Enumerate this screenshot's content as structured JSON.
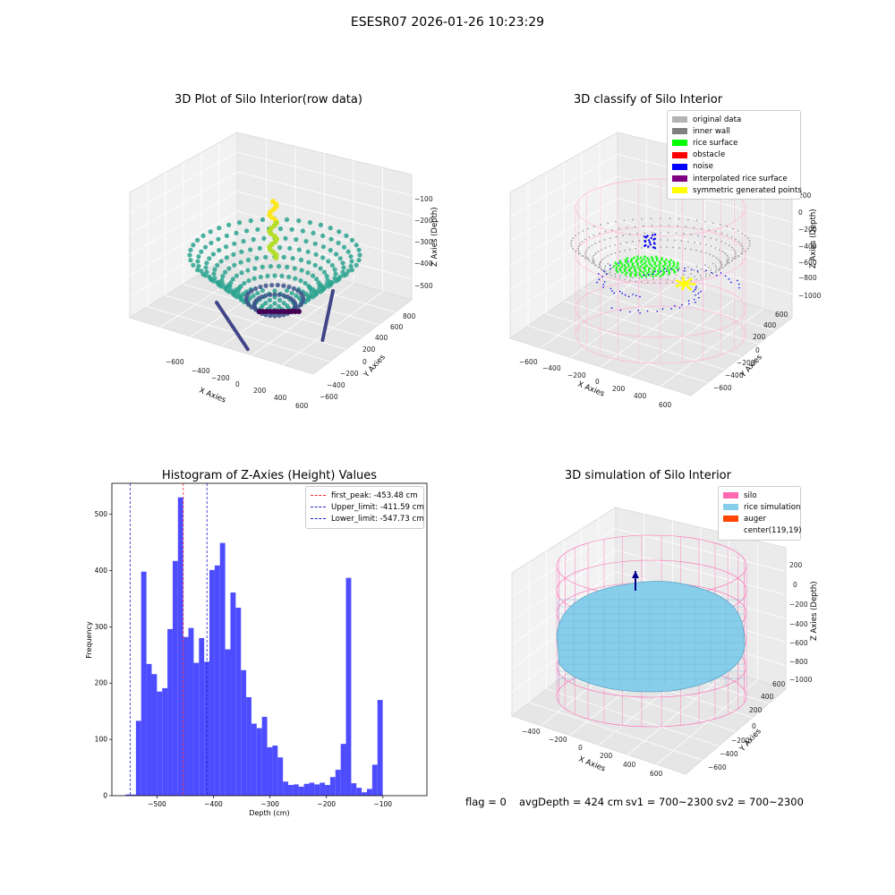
{
  "figure": {
    "title": "ESESR07 2026-01-26 10:23:29"
  },
  "colors": {
    "hist_bar": "#4d4dff",
    "peak_line": "#ff2a2a",
    "limit_line": "#2323c8",
    "silo": "#ff69b4",
    "rice": "#87ceeb",
    "noise": "#0000ee",
    "rice_surface": "#22ff22",
    "symmetric": "#ffff00",
    "original": "#b0b0b0"
  },
  "plots": {
    "raw": {
      "title": "3D Plot of Silo Interior(row data)",
      "x_label": "X Axies",
      "y_label": "Y Axies",
      "z_label": "Z Axies (Depth)",
      "x_ticks": [
        "−600",
        "−400",
        "−200",
        "0",
        "200",
        "400",
        "600"
      ],
      "y_ticks": [
        "−600",
        "−400",
        "−200",
        "0",
        "200",
        "400",
        "600",
        "800"
      ],
      "z_ticks": [
        "−100",
        "−200",
        "−300",
        "−400",
        "−500"
      ]
    },
    "classify": {
      "title": "3D classify of Silo Interior",
      "x_label": "X Axies",
      "y_label": "Y Axies",
      "z_label": "Z Axies (Depth)",
      "x_ticks": [
        "−600",
        "−400",
        "−200",
        "0",
        "200",
        "400",
        "600"
      ],
      "y_ticks": [
        "−600",
        "−400",
        "−200",
        "0",
        "200",
        "400",
        "600"
      ],
      "z_ticks": [
        "200",
        "0",
        "−200",
        "−400",
        "−600",
        "−800",
        "−1000"
      ],
      "legend": [
        {
          "label": "original data",
          "color": "#b3b3b3"
        },
        {
          "label": "inner wall",
          "color": "#808080"
        },
        {
          "label": "rice surface",
          "color": "#00ff00"
        },
        {
          "label": "obstacle",
          "color": "#ff0000"
        },
        {
          "label": "noise",
          "color": "#0000ff"
        },
        {
          "label": "interpolated rice surface",
          "color": "#800080"
        },
        {
          "label": "symmetric generated points",
          "color": "#ffff00"
        }
      ]
    },
    "simulation": {
      "title": "3D simulation of Silo Interior",
      "x_label": "X Axies",
      "y_label": "Y Axies",
      "z_label": "Z Axies (Depth)",
      "x_ticks": [
        "−400",
        "−200",
        "0",
        "200",
        "400",
        "600"
      ],
      "y_ticks": [
        "−600",
        "−400",
        "−200",
        "0",
        "200",
        "400",
        "600"
      ],
      "z_ticks": [
        "200",
        "0",
        "−200",
        "−400",
        "−600",
        "−800",
        "−1000"
      ],
      "legend": [
        {
          "label": "silo",
          "color": "#ff69b4"
        },
        {
          "label": "rice simulation",
          "color": "#87ceeb"
        },
        {
          "label": "auger",
          "color": "#ff4500"
        },
        {
          "label": "center(119,19)",
          "color": ""
        }
      ]
    }
  },
  "chart_data": {
    "type": "bar",
    "title": "Histogram of Z-Axies (Height) Values",
    "xlabel": "Depth (cm)",
    "ylabel": "Frequency",
    "xlim": [
      -580,
      -22
    ],
    "ylim": [
      0,
      555
    ],
    "x_ticks": [
      -500,
      -400,
      -300,
      -200,
      -100
    ],
    "x_tick_labels": [
      "−500",
      "−400",
      "−300",
      "−200",
      "−100"
    ],
    "y_ticks": [
      0,
      100,
      200,
      300,
      400,
      500
    ],
    "y_tick_labels": [
      "0",
      "100",
      "200",
      "300",
      "400",
      "500"
    ],
    "bin_start": -556,
    "bin_width": 9.3,
    "values": [
      2,
      2,
      133,
      398,
      234,
      216,
      185,
      191,
      296,
      417,
      530,
      282,
      298,
      236,
      280,
      238,
      401,
      409,
      449,
      260,
      361,
      334,
      223,
      175,
      128,
      120,
      140,
      86,
      89,
      68,
      25,
      19,
      20,
      16,
      21,
      23,
      20,
      23,
      19,
      33,
      46,
      92,
      387,
      22,
      14,
      6,
      12,
      55,
      170
    ],
    "lines": [
      {
        "label": "first_peak: -453.48 cm",
        "x": -453.48,
        "color": "#ff2a2a"
      },
      {
        "label": "Upper_limit: -411.59 cm",
        "x": -411.59,
        "color": "#2323c8"
      },
      {
        "label": "Lower_limit: -547.73 cm",
        "x": -547.73,
        "color": "#2323c8"
      }
    ],
    "legend_position": "top-right",
    "grid": false
  },
  "status": {
    "flag": "flag = 0",
    "avg_depth": "avgDepth = 424 cm",
    "sv1": "sv1 = 700~2300",
    "sv2": "sv2 = 700~2300"
  }
}
